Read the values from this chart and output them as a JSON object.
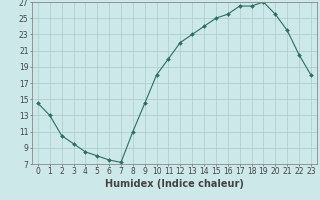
{
  "x": [
    0,
    1,
    2,
    3,
    4,
    5,
    6,
    7,
    8,
    9,
    10,
    11,
    12,
    13,
    14,
    15,
    16,
    17,
    18,
    19,
    20,
    21,
    22,
    23
  ],
  "y": [
    14.5,
    13.0,
    10.5,
    9.5,
    8.5,
    8.0,
    7.5,
    7.2,
    11.0,
    14.5,
    18.0,
    20.0,
    22.0,
    23.0,
    24.0,
    25.0,
    25.5,
    26.5,
    26.5,
    27.0,
    25.5,
    23.5,
    20.5,
    18.0
  ],
  "line_color": "#2d6e5e",
  "marker": "D",
  "marker_size": 2.0,
  "bg_color": "#cce8e8",
  "grid_color": "#aacccc",
  "xlabel": "Humidex (Indice chaleur)",
  "xlim": [
    -0.5,
    23.5
  ],
  "ylim": [
    7,
    27
  ],
  "yticks": [
    7,
    9,
    11,
    13,
    15,
    17,
    19,
    21,
    23,
    25,
    27
  ],
  "xticks": [
    0,
    1,
    2,
    3,
    4,
    5,
    6,
    7,
    8,
    9,
    10,
    11,
    12,
    13,
    14,
    15,
    16,
    17,
    18,
    19,
    20,
    21,
    22,
    23
  ],
  "tick_label_fontsize": 5.5,
  "xlabel_fontsize": 7.0,
  "tick_color": "#444444",
  "axis_color": "#888888",
  "linewidth": 0.8
}
